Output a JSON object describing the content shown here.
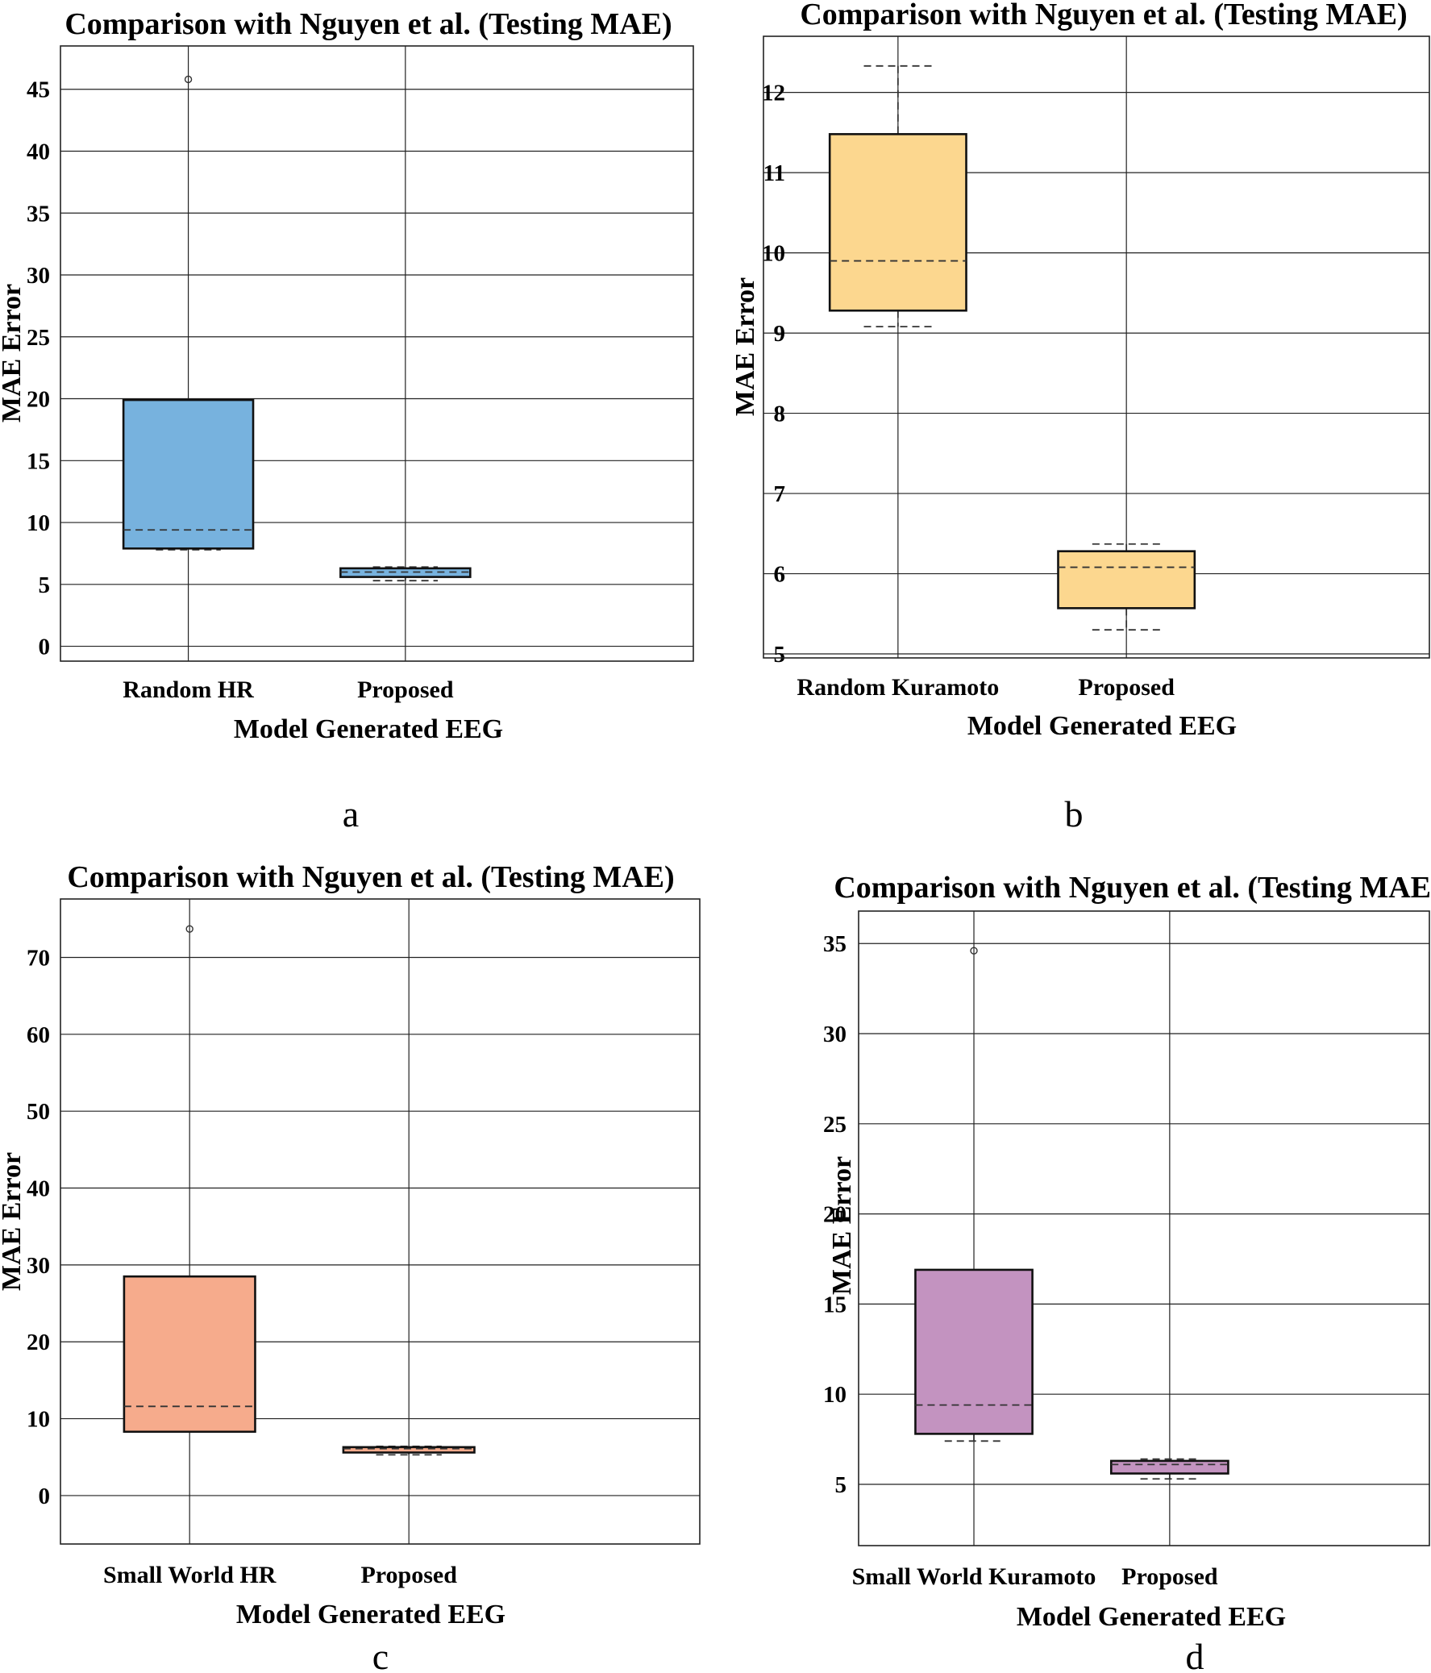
{
  "chart_data": [
    {
      "type": "box",
      "panel_label": "a",
      "title": "Comparison with Nguyen et al. (Testing MAE)",
      "xlabel": "Model Generated EEG",
      "ylabel": "MAE Error",
      "ylim": [
        -1.2,
        48.5
      ],
      "yticks": [
        0,
        5,
        10,
        15,
        20,
        25,
        30,
        35,
        40,
        45
      ],
      "categories": [
        "Random HR",
        "Proposed"
      ],
      "color": "#77b2de",
      "boxes": [
        {
          "q1": 7.9,
          "median": 9.4,
          "q3": 19.9,
          "whisker_low": 7.8,
          "whisker_high": null,
          "outliers": [
            45.8
          ]
        },
        {
          "q1": 5.6,
          "median": 6.0,
          "q3": 6.3,
          "whisker_low": 5.3,
          "whisker_high": 6.4,
          "outliers": []
        }
      ]
    },
    {
      "type": "box",
      "panel_label": "b",
      "title": "Comparison with Nguyen et al. (Testing MAE)",
      "xlabel": "Model Generated EEG",
      "ylabel": "MAE Error",
      "ylim": [
        4.95,
        12.7
      ],
      "yticks": [
        5,
        6,
        7,
        8,
        9,
        10,
        11,
        12
      ],
      "categories": [
        "Random Kuramoto",
        "Proposed"
      ],
      "color": "#fcd78f",
      "boxes": [
        {
          "q1": 9.28,
          "median": 9.9,
          "q3": 11.48,
          "whisker_low": 9.08,
          "whisker_high": 12.33,
          "outliers": []
        },
        {
          "q1": 5.57,
          "median": 6.08,
          "q3": 6.28,
          "whisker_low": 5.3,
          "whisker_high": 6.37,
          "outliers": []
        }
      ]
    },
    {
      "type": "box",
      "panel_label": "c",
      "title": "Comparison with Nguyen et al. (Testing MAE)",
      "xlabel": "Model Generated EEG",
      "ylabel": "MAE Error",
      "ylim": [
        -6.3,
        77.6
      ],
      "yticks": [
        0,
        10,
        20,
        30,
        40,
        50,
        60,
        70
      ],
      "categories": [
        "Small World HR",
        "Proposed"
      ],
      "color": "#f6ab8c",
      "boxes": [
        {
          "q1": 8.3,
          "median": 11.6,
          "q3": 28.5,
          "whisker_low": 8.3,
          "whisker_high": null,
          "outliers": [
            73.7
          ]
        },
        {
          "q1": 5.6,
          "median": 6.1,
          "q3": 6.3,
          "whisker_low": 5.3,
          "whisker_high": 6.4,
          "outliers": []
        }
      ]
    },
    {
      "type": "box",
      "panel_label": "d",
      "title": "Comparison with Nguyen et al. (Testing MAE)",
      "xlabel": "Model Generated EEG",
      "ylabel": "MAE Error",
      "ylim": [
        1.6,
        36.8
      ],
      "yticks": [
        5,
        10,
        15,
        20,
        25,
        30,
        35
      ],
      "categories": [
        "Small World Kuramoto",
        "Proposed"
      ],
      "color": "#c393c0",
      "boxes": [
        {
          "q1": 7.8,
          "median": 9.4,
          "q3": 16.9,
          "whisker_low": 7.4,
          "whisker_high": null,
          "outliers": [
            34.6
          ]
        },
        {
          "q1": 5.6,
          "median": 6.1,
          "q3": 6.3,
          "whisker_low": 5.3,
          "whisker_high": 6.4,
          "outliers": []
        }
      ]
    }
  ]
}
